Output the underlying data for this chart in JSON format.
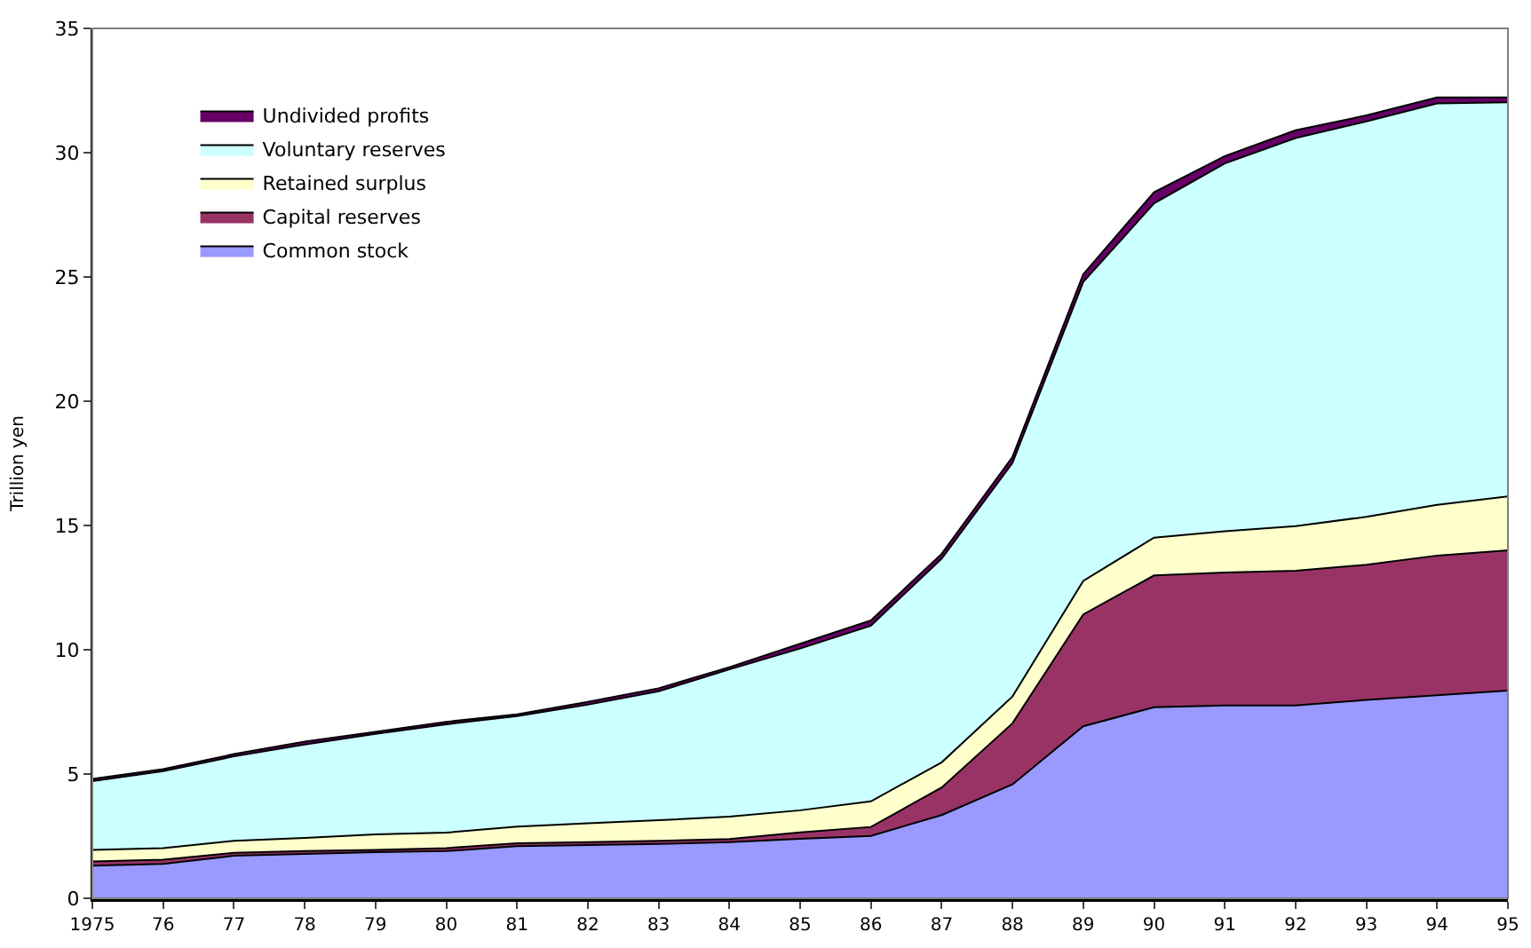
{
  "chart_data": {
    "type": "area",
    "stacked": true,
    "ylabel": "Trillion yen",
    "categories": [
      "1975",
      "76",
      "77",
      "78",
      "79",
      "80",
      "81",
      "82",
      "83",
      "84",
      "85",
      "86",
      "87",
      "88",
      "89",
      "90",
      "91",
      "92",
      "93",
      "94",
      "95"
    ],
    "series": [
      {
        "name": "Common stock",
        "color": "#9999ff",
        "values": [
          1.31,
          1.38,
          1.71,
          1.79,
          1.86,
          1.9,
          2.1,
          2.14,
          2.19,
          2.26,
          2.39,
          2.51,
          3.35,
          4.58,
          6.92,
          7.69,
          7.76,
          7.76,
          7.98,
          8.17,
          8.36
        ]
      },
      {
        "name": "Capital reserves",
        "color": "#993366",
        "values": [
          0.17,
          0.17,
          0.12,
          0.11,
          0.09,
          0.12,
          0.11,
          0.12,
          0.12,
          0.12,
          0.26,
          0.36,
          1.11,
          2.46,
          4.5,
          5.3,
          5.35,
          5.42,
          5.44,
          5.62,
          5.64
        ]
      },
      {
        "name": "Retained surplus",
        "color": "#ffffcc",
        "values": [
          0.47,
          0.47,
          0.48,
          0.53,
          0.62,
          0.62,
          0.67,
          0.76,
          0.83,
          0.91,
          0.89,
          1.03,
          1.01,
          1.08,
          1.35,
          1.52,
          1.66,
          1.79,
          1.93,
          2.04,
          2.17
        ]
      },
      {
        "name": "Voluntary reserves",
        "color": "#ccffff",
        "values": [
          2.76,
          3.1,
          3.4,
          3.76,
          4.05,
          4.36,
          4.45,
          4.77,
          5.19,
          5.92,
          6.51,
          7.07,
          8.2,
          9.4,
          12.03,
          13.45,
          14.8,
          15.62,
          15.91,
          16.15,
          15.86
        ]
      },
      {
        "name": "Undivided profits",
        "color": "#660066",
        "values": [
          0.09,
          0.08,
          0.09,
          0.11,
          0.08,
          0.1,
          0.07,
          0.11,
          0.12,
          0.09,
          0.19,
          0.21,
          0.19,
          0.24,
          0.31,
          0.45,
          0.29,
          0.31,
          0.24,
          0.24,
          0.19
        ]
      }
    ],
    "ylim": [
      0,
      35
    ],
    "yticks": [
      0,
      5,
      10,
      15,
      20,
      25,
      30,
      35
    ],
    "legend": "top left"
  }
}
